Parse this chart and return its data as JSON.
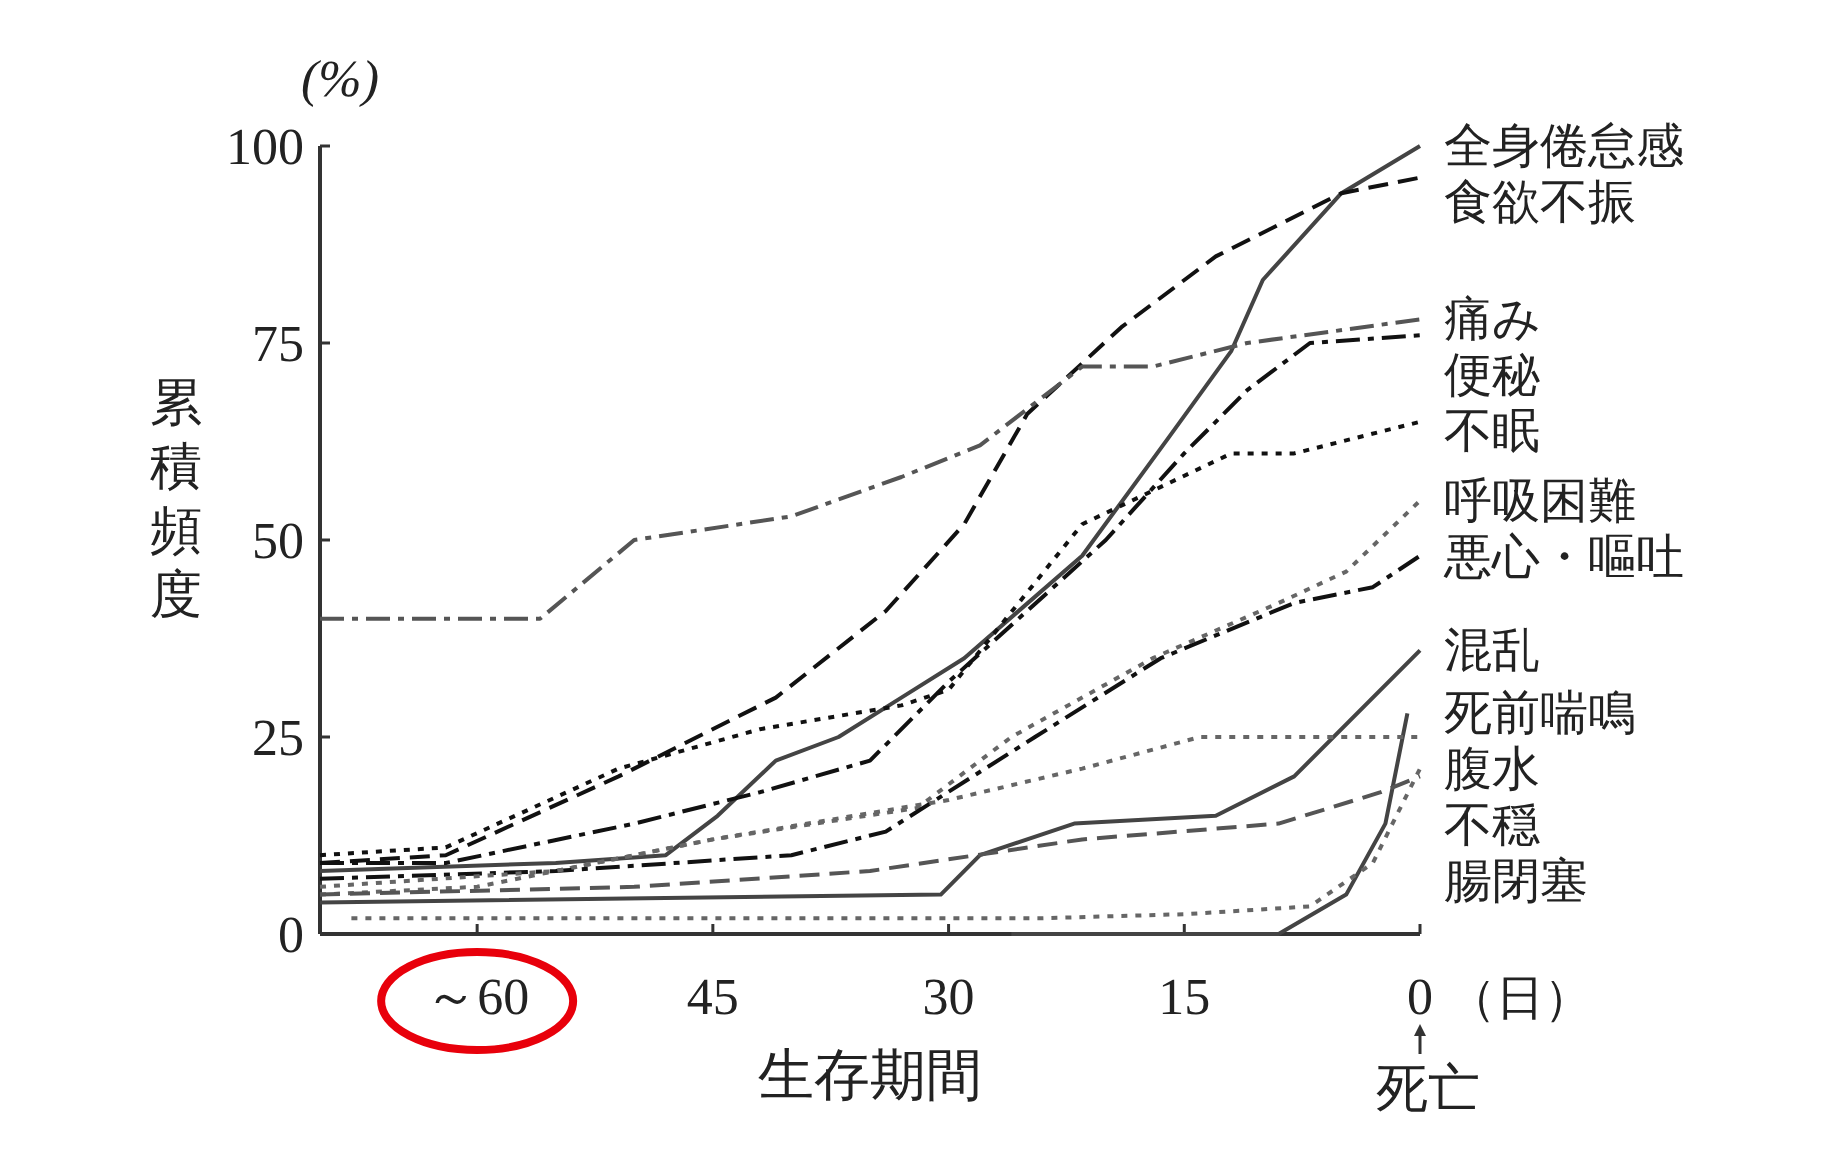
{
  "chart_data": {
    "type": "line",
    "xlabel": "生存期間",
    "ylabel": "累積頻度",
    "annotations": [
      "(%)",
      "（日）",
      "死亡"
    ],
    "xlim": [
      70,
      0
    ],
    "xticks": [
      {
        "value": 60,
        "label": "～60"
      },
      45,
      30,
      15,
      0
    ],
    "ylim": [
      0,
      100
    ],
    "yticks": [
      0,
      25,
      50,
      75,
      100
    ],
    "series": [
      {
        "name": "全身倦怠感",
        "color": "#444444",
        "line_style": "solid",
        "x": [
          70,
          55,
          48,
          44.7,
          41,
          37,
          33,
          29,
          21.5,
          16,
          12,
          10,
          5,
          0
        ],
        "values": [
          8,
          9,
          10,
          15,
          22,
          25,
          30,
          35,
          48,
          63,
          74,
          83,
          94,
          100
        ]
      },
      {
        "name": "食欲不振",
        "color": "#111111",
        "line_style": "dashed",
        "x": [
          70,
          62,
          51,
          41,
          34,
          29,
          25,
          19,
          13,
          5,
          0
        ],
        "values": [
          9,
          10,
          20,
          30,
          41,
          52,
          66,
          77,
          86,
          94,
          96
        ]
      },
      {
        "name": "痛み",
        "color": "#555555",
        "line_style": "dashdot",
        "x": [
          70,
          56,
          50,
          40,
          33,
          28,
          21.5,
          17,
          11,
          0
        ],
        "values": [
          40,
          40,
          50,
          53,
          58,
          62,
          72,
          72,
          75,
          78
        ]
      },
      {
        "name": "便秘",
        "color": "#111111",
        "line_style": "dashdot",
        "x": [
          70,
          62,
          50,
          42,
          35,
          30,
          20,
          15,
          11,
          7,
          0
        ],
        "values": [
          9,
          9,
          14,
          18,
          22,
          32,
          50,
          61,
          69,
          75,
          76
        ]
      },
      {
        "name": "不眠",
        "color": "#111111",
        "line_style": "dotted",
        "x": [
          70,
          62,
          51,
          42,
          33,
          30,
          21.5,
          12,
          8,
          0
        ],
        "values": [
          10,
          11,
          21,
          26,
          29,
          31,
          52,
          61,
          61,
          65
        ]
      },
      {
        "name": "呼吸困難",
        "color": "#666666",
        "line_style": "dotted",
        "x": [
          70,
          60,
          45,
          32,
          26,
          17,
          9,
          4.7,
          0
        ],
        "values": [
          5,
          6,
          12,
          16,
          25,
          35,
          42,
          46,
          55
        ]
      },
      {
        "name": "悪心・嘔吐",
        "color": "#111111",
        "line_style": "dashdot",
        "x": [
          70,
          55,
          40,
          34,
          24.5,
          16.5,
          8,
          3,
          0
        ],
        "values": [
          7,
          8,
          10,
          13,
          25,
          35,
          42,
          44,
          48
        ]
      },
      {
        "name": "混乱",
        "color": "#444444",
        "line_style": "solid",
        "x": [
          70,
          30.5,
          28,
          22,
          13,
          8,
          0
        ],
        "values": [
          4,
          5,
          10,
          14,
          15,
          20,
          36
        ]
      },
      {
        "name": "死前喘鳴",
        "color": "#444444",
        "line_style": "solid",
        "x": [
          26,
          9,
          4.7,
          2.2,
          0.8
        ],
        "values": [
          0,
          0,
          5,
          14,
          28
        ]
      },
      {
        "name": "腹水",
        "color": "#666666",
        "line_style": "dotted",
        "x": [
          70,
          55,
          45,
          30,
          21.5,
          14,
          0
        ],
        "values": [
          6,
          8,
          12,
          17,
          21,
          25,
          25
        ]
      },
      {
        "name": "不穏",
        "color": "#666666",
        "line_style": "dotted",
        "x": [
          68,
          24,
          15,
          7,
          3,
          0
        ],
        "values": [
          2,
          2,
          2.5,
          3.5,
          9,
          21
        ]
      },
      {
        "name": "腸閉塞",
        "color": "#555555",
        "line_style": "dashed",
        "x": [
          70,
          50,
          35,
          21.5,
          9,
          2.5,
          0
        ],
        "values": [
          5,
          6,
          8,
          12,
          14,
          18,
          20
        ]
      }
    ]
  }
}
